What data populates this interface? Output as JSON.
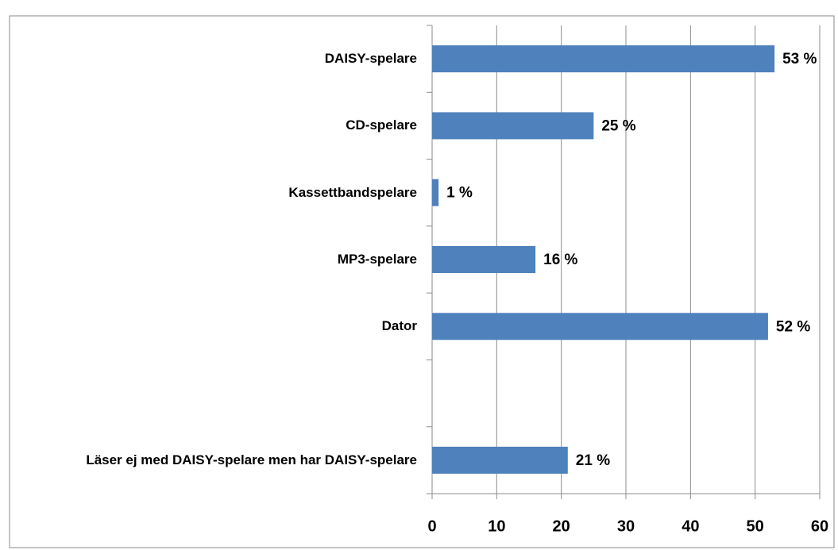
{
  "chart_data": {
    "type": "bar",
    "orientation": "horizontal",
    "categories": [
      "DAISY-spelare",
      "CD-spelare",
      "Kassettbandspelare",
      "MP3-spelare",
      "Dator",
      null,
      "Läser ej med DAISY-spelare men har DAISY-spelare"
    ],
    "values": [
      53,
      25,
      1,
      16,
      52,
      null,
      21
    ],
    "value_labels": [
      "53 %",
      "25 %",
      "1 %",
      "16 %",
      "52 %",
      null,
      "21 %"
    ],
    "color": "#4f81bd",
    "xlim": [
      0,
      60
    ],
    "xticks": [
      0,
      10,
      20,
      30,
      40,
      50,
      60
    ],
    "grid": true
  }
}
